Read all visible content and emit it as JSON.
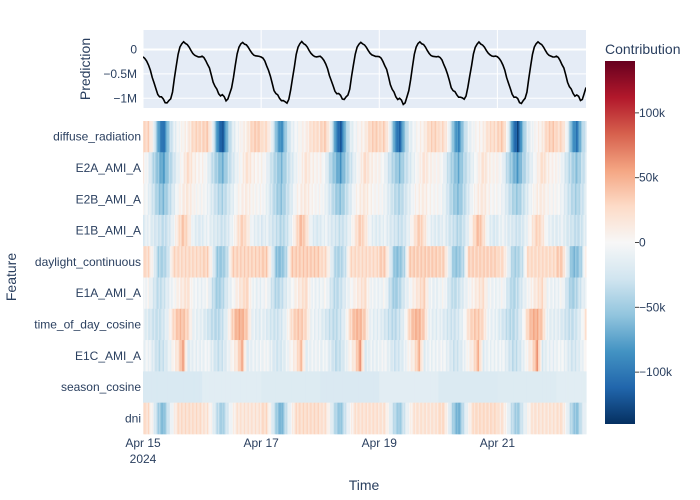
{
  "chart_data": {
    "type": "heatmap",
    "title": "",
    "prediction_panel": {
      "type": "line",
      "ylabel": "Prediction",
      "yticks": [
        0,
        -500000,
        -1000000
      ],
      "ytick_labels": [
        "0",
        "−0.5M",
        "−1M"
      ],
      "ylim": [
        -1200000,
        400000
      ],
      "color": "#000000",
      "day_profile": [
        -0.15,
        -0.18,
        -0.24,
        -0.33,
        -0.42,
        -0.56,
        -0.7,
        -0.82,
        -0.9,
        -0.96,
        -1.0,
        -1.02,
        -1.06,
        -1.1,
        -1.08,
        -1.0,
        -0.85,
        -0.6,
        -0.35,
        -0.1,
        0.05,
        0.12,
        0.16,
        0.12,
        0.1,
        0.05,
        -0.02,
        -0.08,
        -0.12,
        -0.14,
        -0.15,
        -0.15
      ]
    },
    "heatmap_panel": {
      "xlabel": "Time",
      "ylabel": "Feature",
      "features": [
        "diffuse_radiation",
        "E2A_AMI_A",
        "E2B_AMI_A",
        "E1B_AMI_A",
        "daylight_continuous",
        "E1A_AMI_A",
        "time_of_day_cosine",
        "E1C_AMI_A",
        "season_cosine",
        "dni"
      ],
      "x_start": "2024-04-15",
      "x_end": "2024-04-22 12:00",
      "xticks": [
        "Apr 15",
        "Apr 17",
        "Apr 19",
        "Apr 21"
      ],
      "xtick_sublabel": "2024",
      "feature_day_patterns": [
        [
          30,
          35,
          -5,
          -90,
          -130,
          -60,
          -20,
          -5,
          5,
          10,
          30,
          35
        ],
        [
          5,
          -10,
          -40,
          -60,
          -80,
          -50,
          -30,
          -10,
          5,
          25,
          10,
          5
        ],
        [
          0,
          -10,
          -30,
          -50,
          -60,
          -40,
          -20,
          0,
          10,
          15,
          5,
          0
        ],
        [
          -20,
          -10,
          -25,
          -30,
          -40,
          -30,
          -10,
          20,
          45,
          25,
          -10,
          -20
        ],
        [
          35,
          35,
          -10,
          -60,
          -60,
          -40,
          35,
          35,
          35,
          35,
          35,
          35
        ],
        [
          -10,
          0,
          -30,
          -50,
          -40,
          -20,
          -5,
          10,
          20,
          30,
          -5,
          -10
        ],
        [
          -15,
          -25,
          -35,
          -40,
          -30,
          -10,
          30,
          50,
          50,
          35,
          -10,
          -15
        ],
        [
          -10,
          -5,
          -20,
          -35,
          -30,
          -15,
          5,
          20,
          60,
          -20,
          -10,
          -10
        ],
        [
          -22,
          -22,
          -22,
          -22,
          -22,
          -22,
          -22,
          -22,
          -22,
          -22,
          -22,
          -22
        ],
        [
          25,
          25,
          -10,
          -50,
          -70,
          -30,
          0,
          25,
          25,
          25,
          25,
          25
        ]
      ]
    },
    "colorbar": {
      "title": "Contribution",
      "range": [
        -140000,
        140000
      ],
      "ticks": [
        100000,
        50000,
        0,
        -50000,
        -100000
      ],
      "tick_labels": [
        "100k",
        "50k",
        "0",
        "−50k",
        "−100k"
      ],
      "colorscale": "RdBu",
      "colors": [
        "#053061",
        "#2166ac",
        "#4393c3",
        "#92c5de",
        "#d1e5f0",
        "#f7f7f7",
        "#fddbc7",
        "#f4a582",
        "#d6604d",
        "#b2182b",
        "#67001f"
      ]
    }
  }
}
